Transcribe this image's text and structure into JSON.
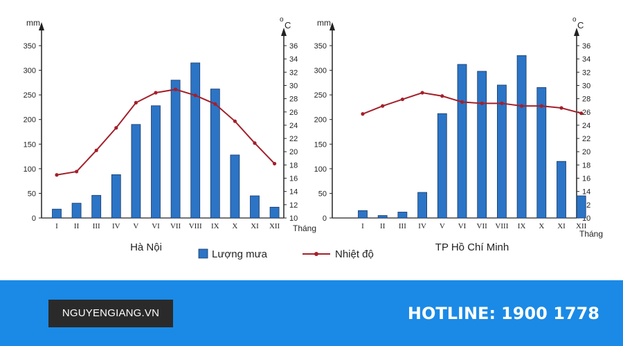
{
  "colors": {
    "bar": "#2b74c6",
    "bar_stroke": "#1a3a66",
    "line": "#a3202a",
    "axis": "#222222",
    "footer": "#1a8ae6",
    "brand_bg": "#2a2a2a"
  },
  "legend": {
    "rain_label": "Lượng mưa",
    "temp_label": "Nhiệt độ",
    "placement": "bottom-center"
  },
  "chart_data": [
    {
      "type": "bar+line",
      "title": "Hà Nội",
      "categories": [
        "I",
        "II",
        "III",
        "IV",
        "V",
        "VI",
        "VII",
        "VIII",
        "IX",
        "X",
        "XI",
        "XII"
      ],
      "xlabel": "Tháng",
      "ylabel_left": "mm",
      "ylabel_right_o": "o",
      "ylabel_right_c": "C",
      "ylim_left": [
        0,
        350
      ],
      "yticks_left": [
        0,
        50,
        100,
        150,
        200,
        250,
        300,
        350
      ],
      "ylim_right": [
        10,
        36
      ],
      "yticks_right": [
        10,
        12,
        14,
        16,
        18,
        20,
        22,
        24,
        26,
        28,
        30,
        32,
        34,
        36
      ],
      "series": [
        {
          "name": "Lượng mưa",
          "kind": "bar",
          "axis": "left",
          "values": [
            18,
            30,
            46,
            88,
            190,
            228,
            280,
            315,
            262,
            128,
            45,
            22
          ]
        },
        {
          "name": "Nhiệt độ",
          "kind": "line",
          "axis": "right",
          "values": [
            16.5,
            17.0,
            20.2,
            23.6,
            27.4,
            28.9,
            29.4,
            28.5,
            27.2,
            24.6,
            21.3,
            18.2
          ]
        }
      ]
    },
    {
      "type": "bar+line",
      "title": "TP Hồ Chí Minh",
      "categories": [
        "I",
        "II",
        "III",
        "IV",
        "V",
        "VI",
        "VII",
        "VIII",
        "IX",
        "X",
        "XI",
        "XII"
      ],
      "xlabel": "Tháng",
      "ylabel_left": "mm",
      "ylabel_right_o": "o",
      "ylabel_right_c": "C",
      "ylim_left": [
        0,
        350
      ],
      "yticks_left": [
        0,
        50,
        100,
        150,
        200,
        250,
        300,
        350
      ],
      "ylim_right": [
        10,
        36
      ],
      "yticks_right": [
        10,
        12,
        14,
        16,
        18,
        20,
        22,
        24,
        26,
        28,
        30,
        32,
        34,
        36
      ],
      "series": [
        {
          "name": "Lượng mưa",
          "kind": "bar",
          "axis": "left",
          "values": [
            15,
            5,
            12,
            52,
            212,
            312,
            298,
            270,
            330,
            265,
            115,
            45
          ]
        },
        {
          "name": "Nhiệt độ",
          "kind": "line",
          "axis": "right",
          "values": [
            25.7,
            26.9,
            27.9,
            28.9,
            28.4,
            27.5,
            27.3,
            27.3,
            26.9,
            26.9,
            26.6,
            25.8
          ]
        }
      ]
    }
  ],
  "footer": {
    "brand": "NGUYENGIANG.VN",
    "hotline_label": "HOTLINE:",
    "hotline_number": "1900 1778"
  }
}
